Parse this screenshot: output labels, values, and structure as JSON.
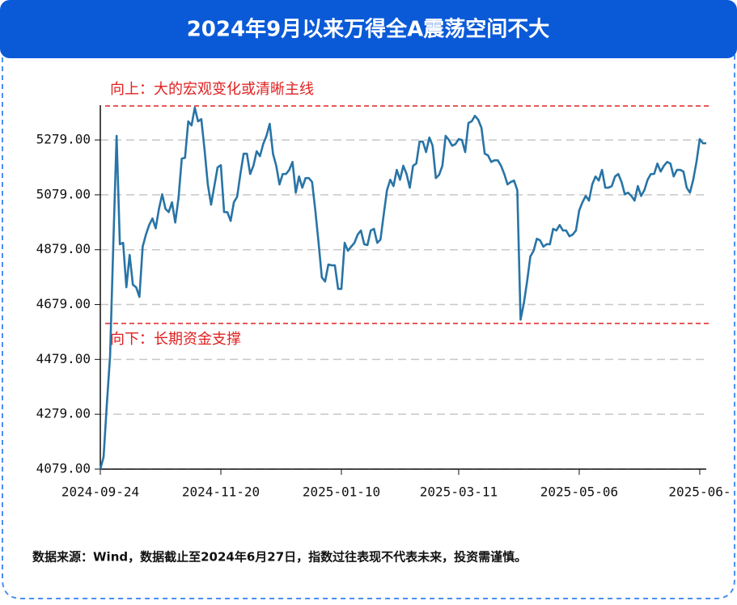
{
  "header": {
    "title": "2024年9月以来万得全A震荡空间不大"
  },
  "chart_data": {
    "type": "line",
    "color": "#2874a6",
    "values": [
      4079,
      4123,
      4315,
      4492,
      4904,
      5294,
      4899,
      4904,
      4742,
      4860,
      4751,
      4742,
      4707,
      4890,
      4934,
      4969,
      4993,
      4957,
      5028,
      5081,
      5028,
      5016,
      5052,
      4978,
      5067,
      5211,
      5214,
      5347,
      5332,
      5397,
      5347,
      5355,
      5243,
      5117,
      5043,
      5111,
      5179,
      5187,
      5016,
      5016,
      4984,
      5052,
      5072,
      5155,
      5229,
      5229,
      5155,
      5185,
      5238,
      5220,
      5264,
      5294,
      5338,
      5229,
      5185,
      5117,
      5155,
      5155,
      5170,
      5199,
      5087,
      5146,
      5105,
      5140,
      5140,
      5126,
      5022,
      4904,
      4778,
      4763,
      4825,
      4822,
      4822,
      4736,
      4736,
      4904,
      4875,
      4890,
      4904,
      4934,
      4949,
      4899,
      4896,
      4949,
      4955,
      4904,
      4916,
      5008,
      5096,
      5134,
      5111,
      5170,
      5134,
      5185,
      5155,
      5105,
      5185,
      5193,
      5273,
      5273,
      5235,
      5288,
      5258,
      5140,
      5152,
      5185,
      5294,
      5279,
      5258,
      5264,
      5282,
      5279,
      5235,
      5341,
      5347,
      5367,
      5353,
      5323,
      5229,
      5223,
      5199,
      5205,
      5205,
      5185,
      5155,
      5117,
      5126,
      5131,
      5096,
      4624,
      4683,
      4763,
      4854,
      4875,
      4919,
      4913,
      4890,
      4899,
      4899,
      4955,
      4949,
      4969,
      4949,
      4949,
      4928,
      4934,
      4949,
      5022,
      5052,
      5075,
      5058,
      5117,
      5146,
      5131,
      5170,
      5105,
      5105,
      5111,
      5146,
      5155,
      5126,
      5081,
      5087,
      5075,
      5058,
      5111,
      5075,
      5096,
      5134,
      5155,
      5155,
      5193,
      5164,
      5185,
      5199,
      5193,
      5146,
      5170,
      5170,
      5164,
      5105,
      5087,
      5134,
      5199,
      5282,
      5267,
      5267
    ],
    "xlim": [
      0,
      186
    ],
    "xticks": [
      {
        "value": 0,
        "label": "2024-09-24"
      },
      {
        "value": 37,
        "label": "2024-11-20"
      },
      {
        "value": 74,
        "label": "2025-01-10"
      },
      {
        "value": 110,
        "label": "2025-03-11"
      },
      {
        "value": 147,
        "label": "2025-05-06"
      },
      {
        "value": 184,
        "label": "2025-06-"
      }
    ],
    "ylim": [
      4079,
      5406
    ],
    "yticks": [
      {
        "value": 4079,
        "label": "4079.00"
      },
      {
        "value": 4279,
        "label": "4279.00"
      },
      {
        "value": 4479,
        "label": "4479.00"
      },
      {
        "value": 4679,
        "label": "4679.00"
      },
      {
        "value": 4879,
        "label": "4879.00"
      },
      {
        "value": 5079,
        "label": "5079.00"
      },
      {
        "value": 5279,
        "label": "5279.00"
      }
    ],
    "grid": true,
    "reference_lines": [
      {
        "value": 5403,
        "label": "向上：大的宏观变化或清晰主线",
        "color": "#e02020"
      },
      {
        "value": 4610,
        "label": "向下：长期资金支撑",
        "color": "#e02020"
      }
    ]
  },
  "footer": {
    "note": "数据来源：Wind，数据截止至2024年6月27日，指数过往表现不代表未来，投资需谨慎。"
  }
}
